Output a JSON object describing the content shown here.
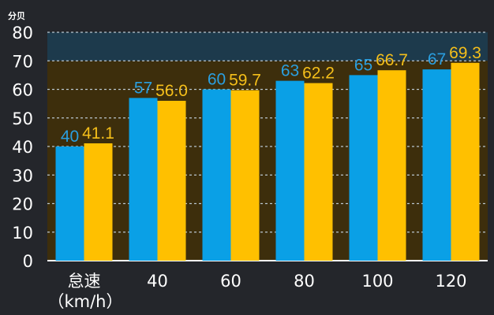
{
  "chart_data": {
    "type": "bar",
    "ylabel": "分贝",
    "xlabel": "（km/h）",
    "categories": [
      "怠速",
      "40",
      "60",
      "80",
      "100",
      "120"
    ],
    "ylim": [
      0,
      80
    ],
    "yticks": [
      0,
      10,
      20,
      30,
      40,
      50,
      60,
      70,
      80
    ],
    "grid": true,
    "series": [
      {
        "values": [
          40,
          57,
          60,
          63,
          65,
          67
        ],
        "color": "#0aa0e6",
        "label_color": "#2a9fe0"
      },
      {
        "values": [
          41.1,
          56.0,
          59.7,
          62.2,
          66.7,
          69.3
        ],
        "color": "#ffc000",
        "label_color": "#f5bf1a"
      }
    ],
    "value_labels": [
      [
        "40",
        "57",
        "60",
        "63",
        "65",
        "67"
      ],
      [
        "41.1",
        "56.0",
        "59.7",
        "62.2",
        "66.7",
        "69.3"
      ]
    ],
    "band_colors": {
      "upper": "#1d3a4c",
      "lower": "#3d2e0c",
      "split_value": 70,
      "gridline": "#b9c6cf"
    }
  }
}
